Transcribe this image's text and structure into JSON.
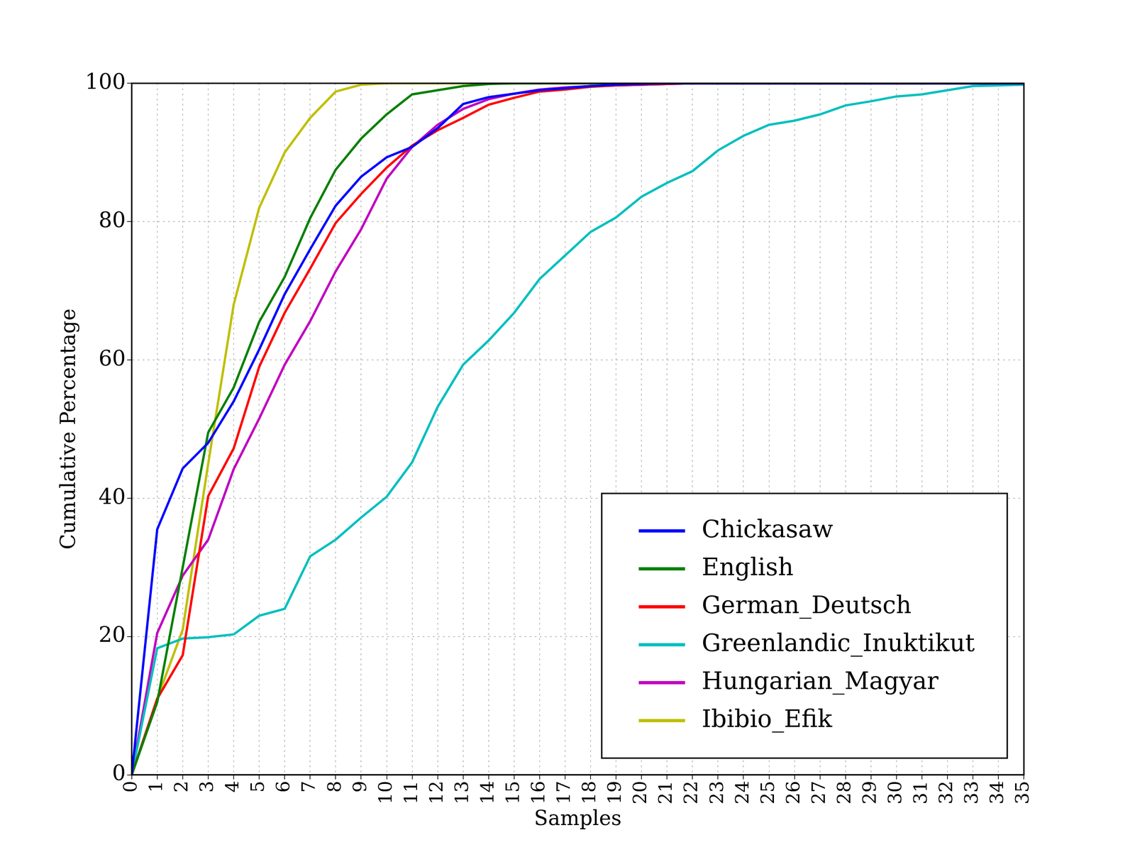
{
  "chart_data": {
    "type": "line",
    "x_label": "Samples",
    "y_label": "Cumulative Percentage",
    "x": [
      0,
      1,
      2,
      3,
      4,
      5,
      6,
      7,
      8,
      9,
      10,
      11,
      12,
      13,
      14,
      15,
      16,
      17,
      18,
      19,
      20,
      21,
      22,
      23,
      24,
      25,
      26,
      27,
      28,
      29,
      30,
      31,
      32,
      33,
      34,
      35
    ],
    "series": [
      {
        "name": "Chickasaw",
        "color": "#0000ff",
        "values": [
          0,
          35.5,
          44.3,
          48,
          54,
          61.5,
          69.5,
          76,
          82.3,
          86.5,
          89.3,
          90.8,
          93.5,
          97,
          98,
          98.5,
          99,
          99.3,
          99.6,
          99.8,
          99.9,
          100,
          100,
          100,
          100,
          100,
          100,
          100,
          100,
          100,
          100,
          100,
          100,
          100,
          100,
          100
        ]
      },
      {
        "name": "English",
        "color": "#008000",
        "values": [
          0,
          10.5,
          30,
          49.5,
          56,
          65.5,
          72,
          80.5,
          87.5,
          92,
          95.5,
          98.4,
          99,
          99.6,
          99.9,
          100,
          100,
          100,
          100,
          100,
          100,
          100,
          100,
          100,
          100,
          100,
          100,
          100,
          100,
          100,
          100,
          100,
          100,
          100,
          100,
          100
        ]
      },
      {
        "name": "German_Deutsch",
        "color": "#ff0000",
        "values": [
          0,
          11,
          17.3,
          40.3,
          47.2,
          59,
          66.8,
          73.2,
          79.8,
          84,
          87.8,
          91,
          93.2,
          95,
          96.9,
          97.9,
          98.8,
          99.1,
          99.5,
          99.7,
          99.8,
          99.9,
          100,
          100,
          100,
          100,
          100,
          100,
          100,
          100,
          100,
          100,
          100,
          100,
          100,
          100
        ]
      },
      {
        "name": "Greenlandic_Inuktikut",
        "color": "#00bfbf",
        "values": [
          0,
          18.3,
          19.7,
          19.9,
          20.3,
          23,
          24,
          31.6,
          34,
          37.2,
          40.2,
          45.2,
          53.2,
          59.3,
          62.8,
          66.8,
          71.7,
          75.1,
          78.5,
          80.6,
          83.6,
          85.6,
          87.3,
          90.3,
          92.4,
          94,
          94.6,
          95.5,
          96.8,
          97.4,
          98.1,
          98.4,
          99,
          99.6,
          99.7,
          99.8
        ]
      },
      {
        "name": "Hungarian_Magyar",
        "color": "#bf00bf",
        "values": [
          0,
          20.5,
          28.8,
          34,
          44.2,
          51.5,
          59.3,
          65.6,
          72.8,
          78.9,
          86.2,
          90.8,
          94,
          96.3,
          97.7,
          98.5,
          99.1,
          99.4,
          99.6,
          99.7,
          99.8,
          99.9,
          100,
          100,
          100,
          100,
          100,
          100,
          100,
          100,
          100,
          100,
          100,
          100,
          100,
          100
        ]
      },
      {
        "name": "Ibibio_Efik",
        "color": "#bfbf00",
        "values": [
          0,
          11,
          21,
          45,
          68,
          82,
          90,
          95,
          98.8,
          99.8,
          100,
          100,
          100,
          100,
          100,
          100,
          100,
          100,
          100,
          100,
          100,
          100,
          100,
          100,
          100,
          100,
          100,
          100,
          100,
          100,
          100,
          100,
          100,
          100,
          100,
          100
        ]
      }
    ],
    "xlim": [
      0,
      35
    ],
    "xticks": [
      0,
      1,
      2,
      3,
      4,
      5,
      6,
      7,
      8,
      9,
      10,
      11,
      12,
      13,
      14,
      15,
      16,
      17,
      18,
      19,
      20,
      21,
      22,
      23,
      24,
      25,
      26,
      27,
      28,
      29,
      30,
      31,
      32,
      33,
      34,
      35
    ],
    "ylim": [
      0,
      100
    ],
    "yticks": [
      0,
      20,
      40,
      60,
      80,
      100
    ],
    "grid": true,
    "legend": "lower right"
  }
}
